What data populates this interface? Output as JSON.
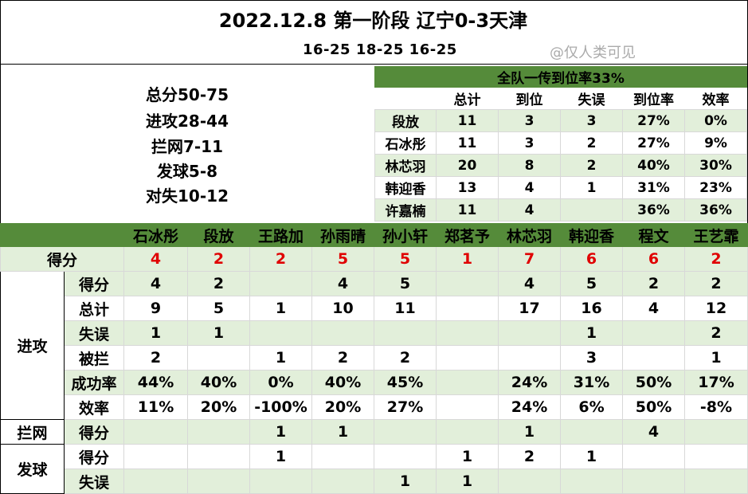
{
  "title": "2022.12.8 第一阶段 辽宁0-3天津",
  "set_scores": "16-25  18-25  16-25",
  "watermark": "@仅人类可见",
  "summary": [
    "总分50-75",
    "进攻28-44",
    "拦网7-11",
    "发球5-8",
    "对失10-12"
  ],
  "pass_table": {
    "title": "全队一传到位率33%",
    "columns": [
      "总计",
      "到位",
      "失误",
      "到位率",
      "效率"
    ],
    "rows": [
      {
        "name": "段放",
        "values": [
          "11",
          "3",
          "3",
          "27%",
          "0%"
        ]
      },
      {
        "name": "石冰彤",
        "values": [
          "11",
          "3",
          "2",
          "27%",
          "9%"
        ]
      },
      {
        "name": "林芯羽",
        "values": [
          "20",
          "8",
          "2",
          "40%",
          "30%"
        ]
      },
      {
        "name": "韩迎香",
        "values": [
          "13",
          "4",
          "1",
          "31%",
          "23%"
        ]
      },
      {
        "name": "许嘉楠",
        "values": [
          "11",
          "4",
          "",
          "36%",
          "36%"
        ]
      }
    ]
  },
  "players": [
    "石冰彤",
    "段放",
    "王路加",
    "孙雨晴",
    "孙小轩",
    "郑茗予",
    "林芯羽",
    "韩迎香",
    "程文",
    "王艺霏"
  ],
  "score_row": {
    "label": "得分",
    "values": [
      "4",
      "2",
      "2",
      "5",
      "5",
      "1",
      "7",
      "6",
      "6",
      "2"
    ]
  },
  "groups": [
    {
      "label": "进攻",
      "rows": [
        {
          "label": "得分",
          "values": [
            "4",
            "2",
            "",
            "4",
            "5",
            "",
            "4",
            "5",
            "2",
            "2"
          ]
        },
        {
          "label": "总计",
          "values": [
            "9",
            "5",
            "1",
            "10",
            "11",
            "",
            "17",
            "16",
            "4",
            "12"
          ]
        },
        {
          "label": "失误",
          "values": [
            "1",
            "1",
            "",
            "",
            "",
            "",
            "",
            "1",
            "",
            "2"
          ]
        },
        {
          "label": "被拦",
          "values": [
            "2",
            "",
            "1",
            "2",
            "2",
            "",
            "",
            "3",
            "",
            "1"
          ]
        },
        {
          "label": "成功率",
          "values": [
            "44%",
            "40%",
            "0%",
            "40%",
            "45%",
            "",
            "24%",
            "31%",
            "50%",
            "17%"
          ]
        },
        {
          "label": "效率",
          "values": [
            "11%",
            "20%",
            "-100%",
            "20%",
            "27%",
            "",
            "24%",
            "6%",
            "50%",
            "-8%"
          ]
        }
      ]
    },
    {
      "label": "拦网",
      "rows": [
        {
          "label": "得分",
          "values": [
            "",
            "",
            "1",
            "1",
            "",
            "",
            "1",
            "",
            "4",
            ""
          ]
        }
      ]
    },
    {
      "label": "发球",
      "rows": [
        {
          "label": "得分",
          "values": [
            "",
            "",
            "1",
            "",
            "",
            "1",
            "2",
            "1",
            "",
            ""
          ]
        },
        {
          "label": "失误",
          "values": [
            "",
            "",
            "",
            "",
            "1",
            "1",
            "",
            "",
            "",
            ""
          ]
        }
      ]
    }
  ]
}
